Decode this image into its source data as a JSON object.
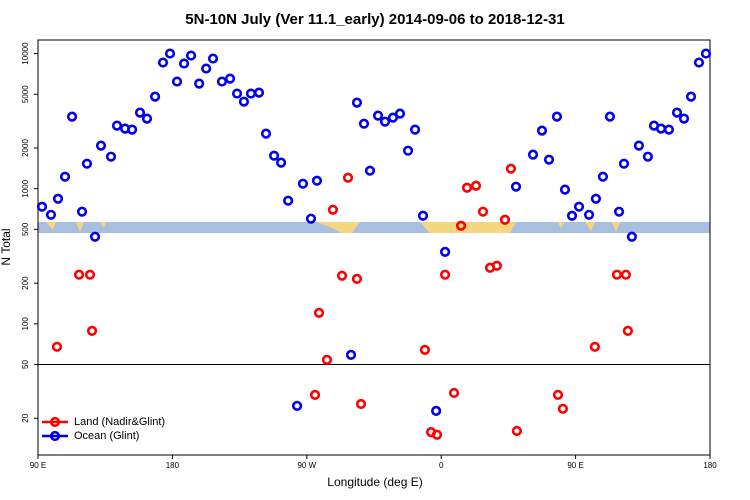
{
  "chart_data": {
    "type": "scatter",
    "title": "5N-10N July (Ver 11.1_early)   2014-09-06 to 2018-12-31",
    "x_label": "Longitude (deg E)",
    "y_label": "N Total",
    "log_y": true,
    "legend": "bottom-left",
    "reference_line": 50,
    "xlim": [
      90,
      540
    ],
    "ylim": [
      10.7,
      12600
    ],
    "xticks": [
      {
        "value": 90,
        "label": "90 E"
      },
      180,
      {
        "value": 270,
        "label": "90 W"
      },
      {
        "value": 360,
        "label": "0"
      },
      {
        "value": 450,
        "label": "90 E"
      },
      {
        "value": 540,
        "label": "180"
      }
    ],
    "yticks": [
      20,
      50,
      100,
      200,
      500,
      1000,
      2000,
      5000,
      10000
    ],
    "series": [
      {
        "name": "Land (Nadir&Glint)",
        "color": "#ff0000",
        "x": [
          102.7,
          117.5,
          124.8,
          126.2,
          278.2,
          283.5,
          275.5,
          287.5,
          293.6,
          297.6,
          303.6,
          306.3,
          349.1,
          353.2,
          357.2,
          362.6,
          368.6,
          373.3,
          377.3,
          383.3,
          388.0,
          392.7,
          397.3,
          402.7,
          406.7,
          410.7,
          438.2,
          441.5,
          462.9,
          477.7,
          483.7,
          485.0
        ],
        "values": [
          67.6,
          231,
          231,
          88.7,
          120.6,
          54.1,
          29.8,
          699,
          227,
          1206,
          215,
          25.5,
          64.2,
          15.8,
          15.1,
          231,
          30.8,
          532,
          1016,
          1052,
          676,
          260,
          269,
          589,
          1406,
          16.1,
          29.8,
          23.5,
          67.6,
          231,
          231,
          88.7
        ]
      },
      {
        "name": "Ocean (Glint)",
        "color": "#0000ee",
        "x": [
          92.7,
          98.7,
          103.4,
          108.1,
          112.8,
          119.5,
          122.8,
          128.2,
          132.2,
          138.9,
          142.9,
          148.3,
          153.0,
          158.3,
          163.0,
          168.4,
          173.7,
          178.4,
          183.1,
          187.8,
          192.5,
          197.9,
          202.6,
          207.2,
          213.2,
          218.6,
          223.3,
          227.9,
          232.6,
          238.0,
          242.7,
          248.1,
          252.8,
          257.5,
          263.5,
          267.4,
          272.8,
          276.8,
          299.6,
          303.6,
          308.3,
          312.3,
          317.7,
          322.4,
          327.7,
          332.4,
          337.8,
          342.5,
          347.8,
          356.6,
          362.6,
          410.1,
          421.5,
          427.5,
          432.2,
          437.5,
          442.9,
          447.6,
          452.3,
          459.0,
          463.6,
          468.3,
          473.0,
          479.1,
          482.4,
          487.7,
          492.4,
          498.4,
          502.5,
          507.2,
          512.5,
          517.9,
          522.6,
          527.3,
          532.6,
          537.3
        ],
        "values": [
          736,
          641,
          843,
          1227,
          3413,
          676,
          1531,
          441,
          2082,
          1726,
          2929,
          2782,
          2735,
          3656,
          3300,
          4801,
          8577,
          10000,
          6205,
          8433,
          9665,
          5995,
          7744,
          9183,
          6205,
          6528,
          5057,
          4406,
          5057,
          5140,
          2555,
          1755,
          1559,
          815,
          24.7,
          1089,
          600,
          1146,
          58.9,
          4335,
          3027,
          1359,
          3474,
          3133,
          3357,
          3593,
          1911,
          2735,
          631,
          22.7,
          341,
          1035,
          1786,
          2690,
          1640,
          3413,
          984,
          631,
          736,
          641,
          843,
          1227,
          3413,
          676,
          1531,
          441,
          2082,
          1726,
          2929,
          2782,
          2735,
          3656,
          3300,
          4801,
          8577,
          10000
        ]
      }
    ]
  }
}
